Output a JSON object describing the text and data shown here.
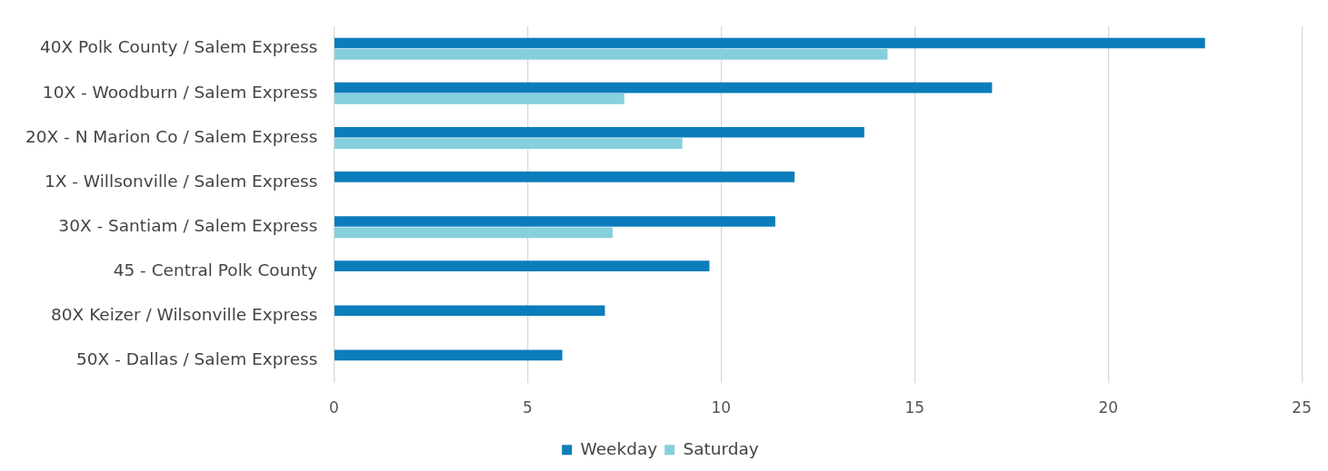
{
  "chart_data": {
    "type": "bar",
    "orientation": "horizontal",
    "categories": [
      "40X Polk County / Salem Express",
      "10X - Woodburn / Salem Express",
      "20X - N Marion Co / Salem Express",
      "1X - Willsonville / Salem Express",
      "30X - Santiam / Salem Express",
      "45 - Central Polk County",
      "80X Keizer / Wilsonville Express",
      "50X - Dallas / Salem Express"
    ],
    "series": [
      {
        "name": "Weekday",
        "color": "#0b7dbb",
        "values": [
          22.5,
          17.0,
          13.7,
          11.9,
          11.4,
          9.7,
          7.0,
          5.9
        ]
      },
      {
        "name": "Saturday",
        "color": "#86cfdc",
        "values": [
          14.3,
          7.5,
          9.0,
          null,
          7.2,
          null,
          null,
          null
        ]
      }
    ],
    "xlim": [
      0,
      25
    ],
    "xticks": [
      0,
      5,
      10,
      15,
      20,
      25
    ],
    "grid": "x",
    "legend": "bottom"
  }
}
